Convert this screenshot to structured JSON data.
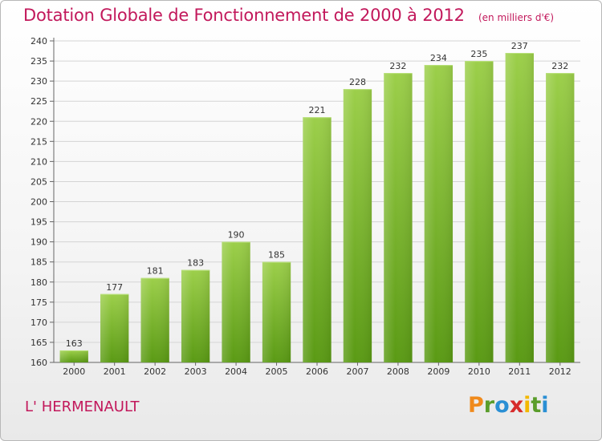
{
  "header": {
    "title": "Dotation Globale de Fonctionnement de 2000 à 2012",
    "subtitle": "(en milliers d'€)"
  },
  "footer": {
    "commune": "L' HERMENAULT",
    "logo_letters": [
      "P",
      "r",
      "o",
      "x",
      "i",
      "t",
      "i"
    ]
  },
  "colors": {
    "title": "#c2185b",
    "bar_top": "#9ccf4a",
    "bar_bottom": "#5a9a14"
  },
  "chart_data": {
    "type": "bar",
    "title": "Dotation Globale de Fonctionnement de 2000 à 2012",
    "subtitle": "(en milliers d'€)",
    "xlabel": "",
    "ylabel": "",
    "categories": [
      "2000",
      "2001",
      "2002",
      "2003",
      "2004",
      "2005",
      "2006",
      "2007",
      "2008",
      "2009",
      "2010",
      "2011",
      "2012"
    ],
    "values": [
      163,
      177,
      181,
      183,
      190,
      185,
      221,
      228,
      232,
      234,
      235,
      237,
      232
    ],
    "data_labels": [
      "163",
      "177",
      "181",
      "183",
      "190",
      "185",
      "221",
      "228",
      "232",
      "234",
      "235",
      "237",
      "232"
    ],
    "ylim": [
      160,
      240
    ],
    "yticks": [
      160,
      165,
      170,
      175,
      180,
      185,
      190,
      195,
      200,
      205,
      210,
      215,
      220,
      225,
      230,
      235,
      240
    ],
    "grid": true,
    "legend": "none"
  }
}
